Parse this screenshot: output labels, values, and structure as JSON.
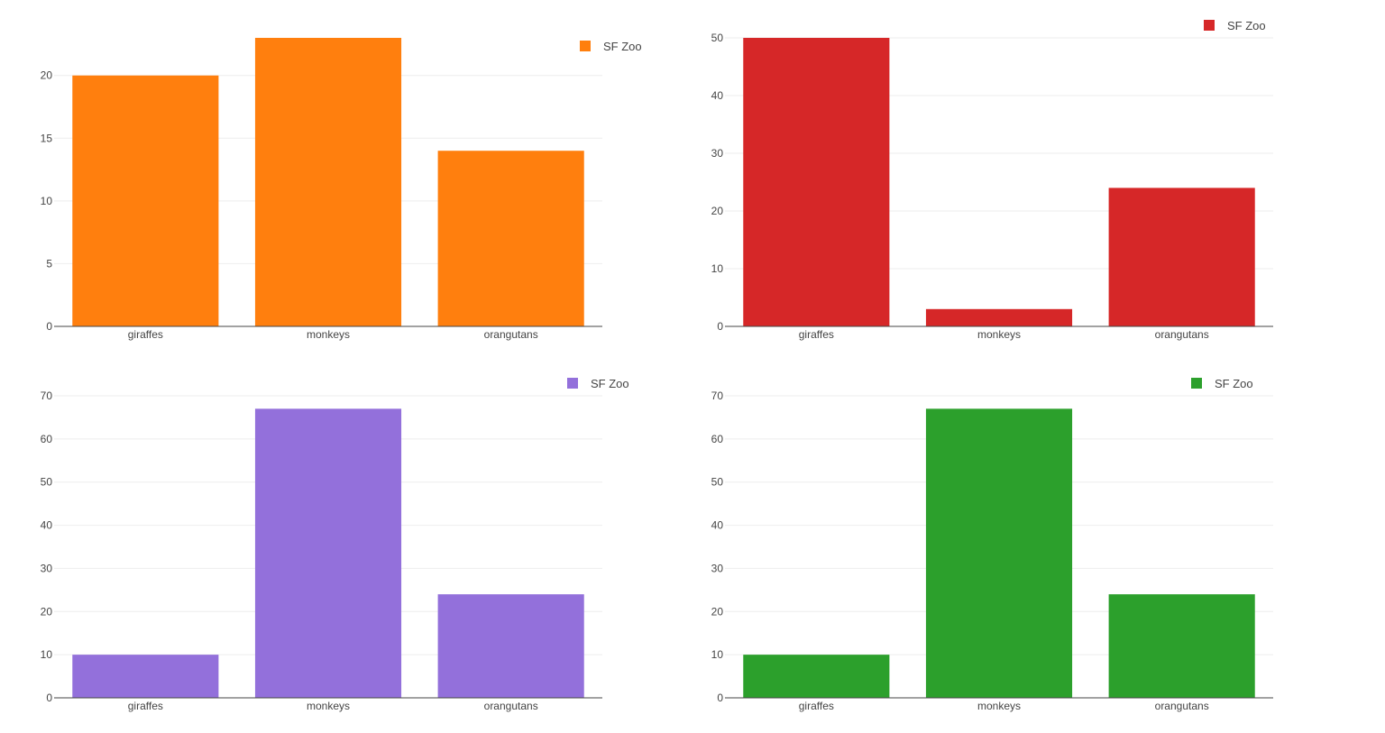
{
  "chart_data": [
    {
      "type": "bar",
      "categories": [
        "giraffes",
        "monkeys",
        "orangutans"
      ],
      "series": [
        {
          "name": "SF Zoo",
          "values": [
            20,
            23,
            14
          ]
        }
      ],
      "color": "#ff7f0e",
      "ylim": [
        0,
        23
      ],
      "yticks": [
        0,
        5,
        10,
        15,
        20
      ],
      "grid": true,
      "legend": "top-right"
    },
    {
      "type": "bar",
      "categories": [
        "giraffes",
        "monkeys",
        "orangutans"
      ],
      "series": [
        {
          "name": "SF Zoo",
          "values": [
            50,
            3,
            24
          ]
        }
      ],
      "color": "#d62728",
      "ylim": [
        0,
        50
      ],
      "yticks": [
        0,
        10,
        20,
        30,
        40,
        50
      ],
      "grid": true,
      "legend": "top-right"
    },
    {
      "type": "bar",
      "categories": [
        "giraffes",
        "monkeys",
        "orangutans"
      ],
      "series": [
        {
          "name": "SF Zoo",
          "values": [
            10,
            67,
            24
          ]
        }
      ],
      "color": "#9370db",
      "ylim": [
        0,
        70
      ],
      "yticks": [
        0,
        10,
        20,
        30,
        40,
        50,
        60,
        70
      ],
      "grid": true,
      "legend": "top-right"
    },
    {
      "type": "bar",
      "categories": [
        "giraffes",
        "monkeys",
        "orangutans"
      ],
      "series": [
        {
          "name": "SF Zoo",
          "values": [
            10,
            67,
            24
          ]
        }
      ],
      "color": "#2ca02c",
      "ylim": [
        0,
        70
      ],
      "yticks": [
        0,
        10,
        20,
        30,
        40,
        50,
        60,
        70
      ],
      "grid": true,
      "legend": "top-right"
    }
  ]
}
